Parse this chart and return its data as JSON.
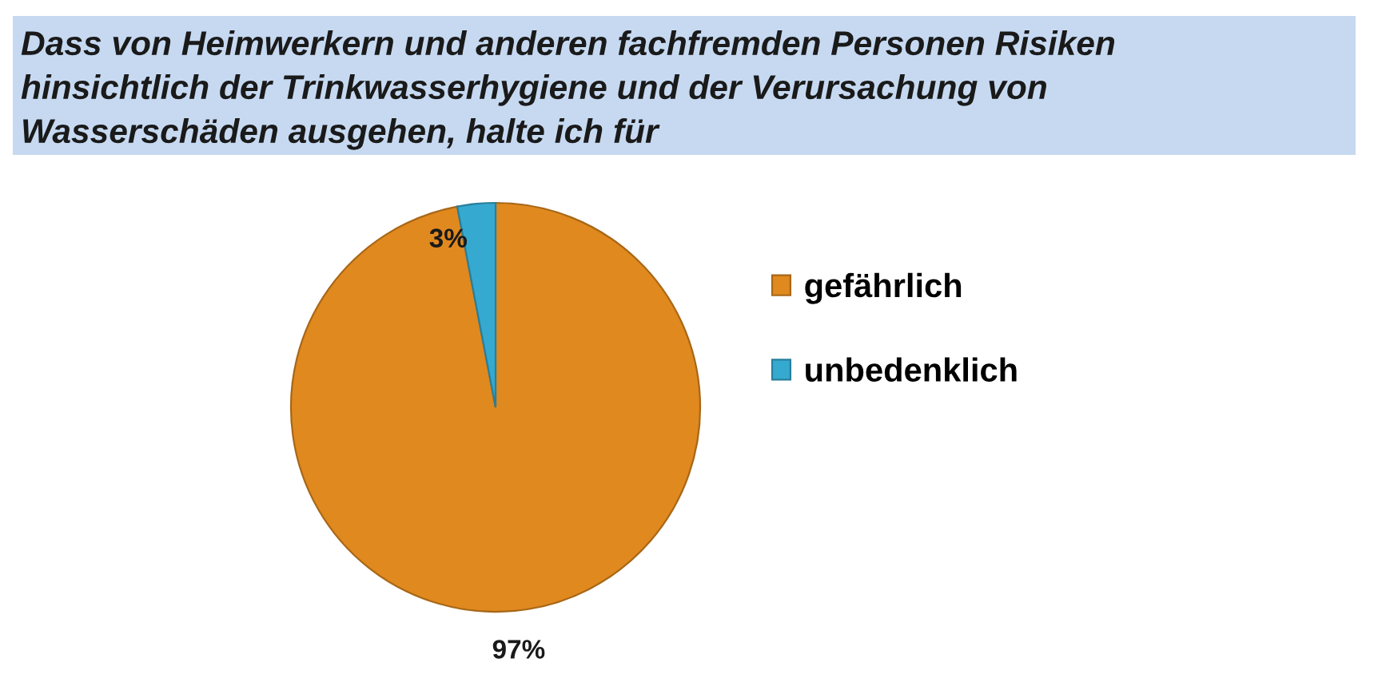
{
  "chart_data": {
    "type": "pie",
    "title": "Dass von Heimwerkern und anderen fachfremden Personen Risiken\nhinsichtlich der Trinkwasserhygiene und der Verursachung von\nWasserschäden ausgehen, halte ich für",
    "categories": [
      "gefährlich",
      "unbedenklich"
    ],
    "values": [
      97,
      3
    ],
    "colors": [
      "#e0891f",
      "#36a9d0"
    ],
    "value_labels": [
      "97%",
      "3%"
    ],
    "legend": "right"
  }
}
